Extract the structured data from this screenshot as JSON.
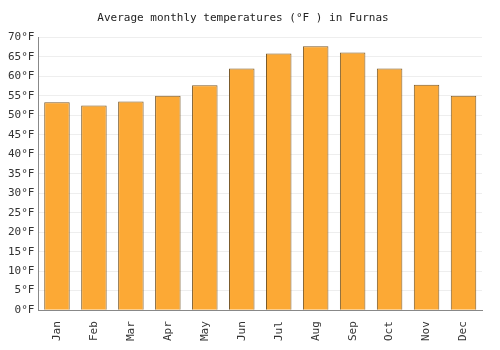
{
  "chart_data": {
    "type": "bar",
    "title": "Average monthly temperatures (°F ) in Furnas",
    "categories": [
      "Jan",
      "Feb",
      "Mar",
      "Apr",
      "May",
      "Jun",
      "Jul",
      "Aug",
      "Sep",
      "Oct",
      "Nov",
      "Dec"
    ],
    "values": [
      53.3,
      52.5,
      53.5,
      55.0,
      57.7,
      62.0,
      65.8,
      67.7,
      66.1,
      62.0,
      57.8,
      55.0
    ],
    "color": "#fca935",
    "ylim": [
      0,
      70
    ],
    "yticks": [
      {
        "value": 0,
        "label": "0°F"
      },
      {
        "value": 5,
        "label": "5°F"
      },
      {
        "value": 10,
        "label": "10°F"
      },
      {
        "value": 15,
        "label": "15°F"
      },
      {
        "value": 20,
        "label": "20°F"
      },
      {
        "value": 25,
        "label": "25°F"
      },
      {
        "value": 30,
        "label": "30°F"
      },
      {
        "value": 35,
        "label": "35°F"
      },
      {
        "value": 40,
        "label": "40°F"
      },
      {
        "value": 45,
        "label": "45°F"
      },
      {
        "value": 50,
        "label": "50°F"
      },
      {
        "value": 55,
        "label": "55°F"
      },
      {
        "value": 60,
        "label": "60°F"
      },
      {
        "value": 65,
        "label": "65°F"
      },
      {
        "value": 70,
        "label": "70°F"
      }
    ],
    "grid": true
  }
}
